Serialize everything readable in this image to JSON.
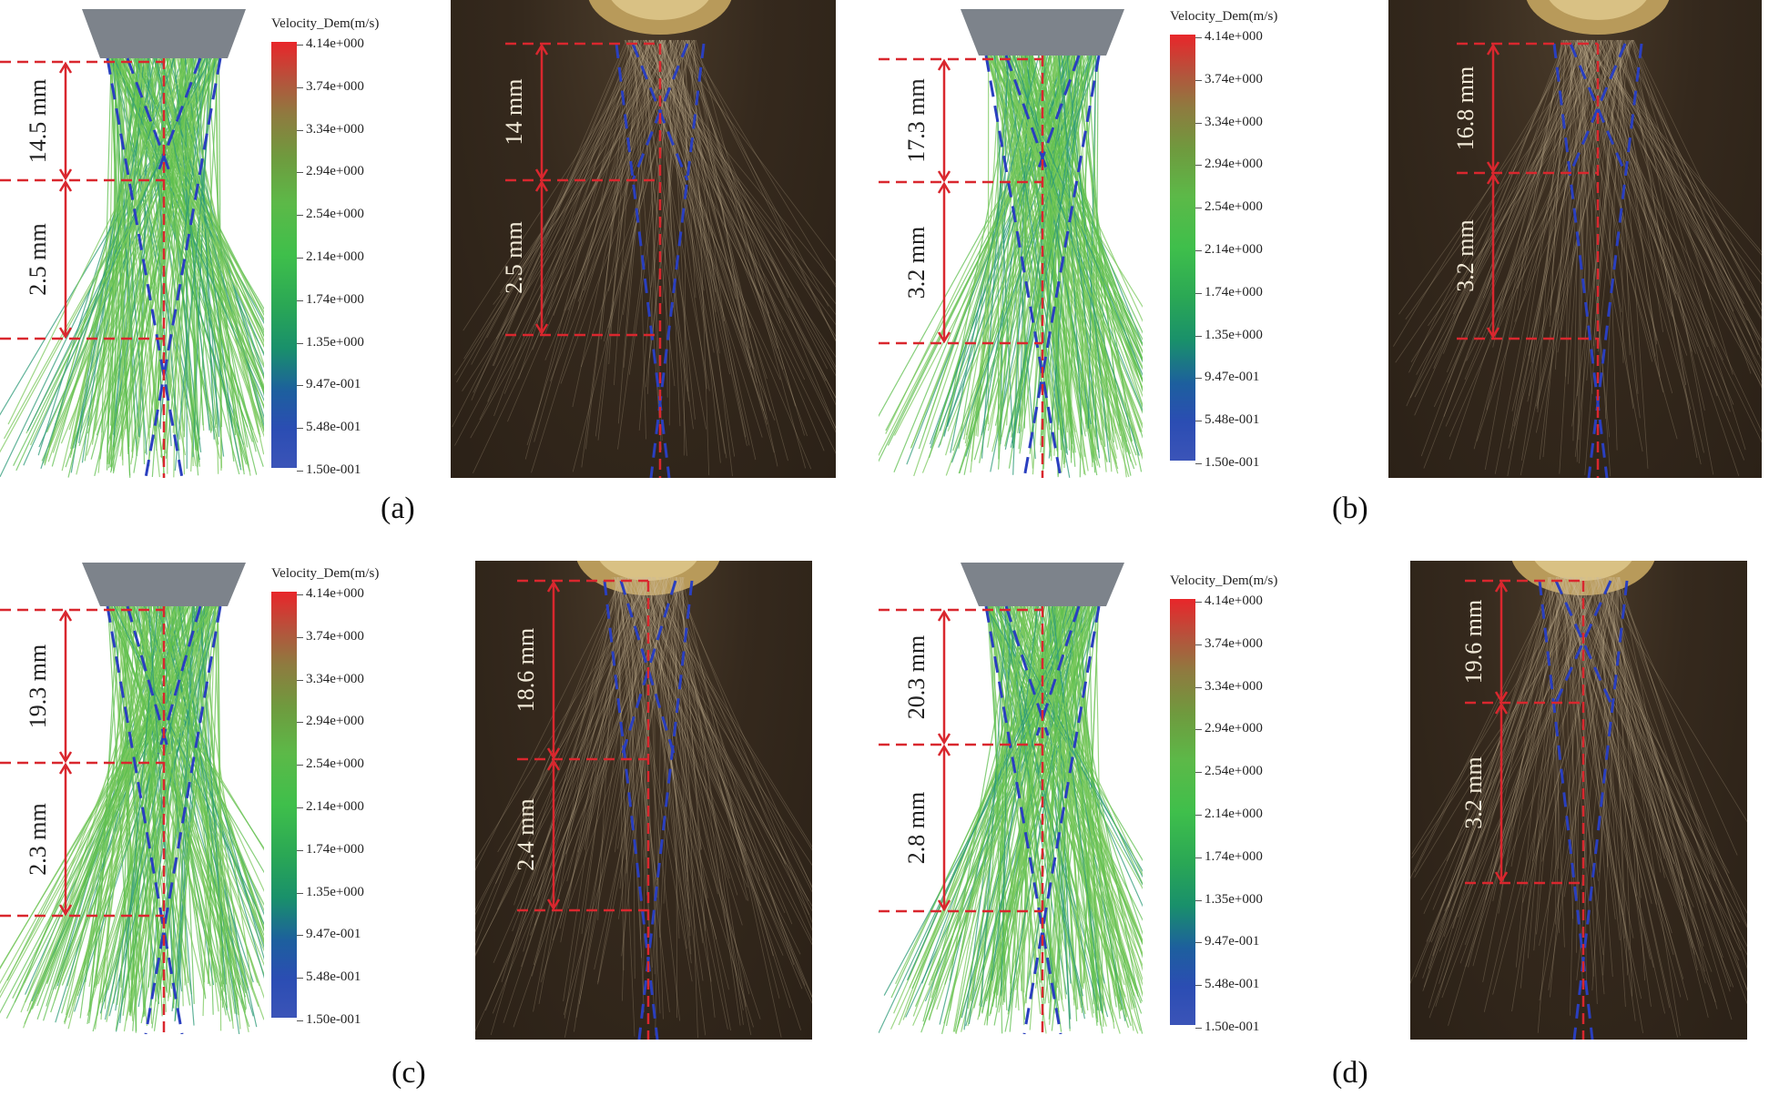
{
  "colorbar": {
    "title": "Velocity_Dem(m/s)",
    "ticks": [
      "4.14e+000",
      "3.74e+000",
      "3.34e+000",
      "2.94e+000",
      "2.54e+000",
      "2.14e+000",
      "1.74e+000",
      "1.35e+000",
      "9.47e-001",
      "5.48e-001",
      "1.50e-001"
    ]
  },
  "panels": [
    {
      "caption": "(a)",
      "sim_upper": "14.5 mm",
      "sim_lower": "2.5 mm",
      "photo_upper": "14 mm",
      "photo_lower": "2.5 mm"
    },
    {
      "caption": "(b)",
      "sim_upper": "17.3 mm",
      "sim_lower": "3.2 mm",
      "photo_upper": "16.8 mm",
      "photo_lower": "3.2 mm"
    },
    {
      "caption": "(c)",
      "sim_upper": "19.3 mm",
      "sim_lower": "2.3 mm",
      "photo_upper": "18.6 mm",
      "photo_lower": "2.4 mm"
    },
    {
      "caption": "(d)",
      "sim_upper": "20.3 mm",
      "sim_lower": "2.8 mm",
      "photo_upper": "19.6 mm",
      "photo_lower": "3.2 mm"
    }
  ],
  "colors": {
    "dimension": "#d9272e",
    "cone": "#2a3fbf",
    "particles": "#56b948",
    "nozzle": "#7d838b"
  }
}
